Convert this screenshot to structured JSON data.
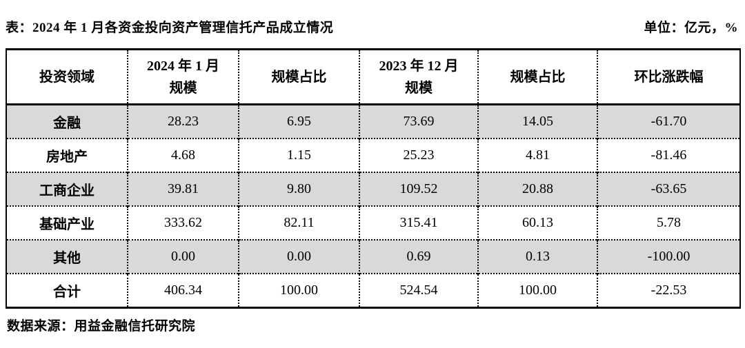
{
  "title": {
    "left": "表：2024 年 1 月各资金投向资产管理信托产品成立情况",
    "right": "单位：亿元，%"
  },
  "table": {
    "headers": [
      "投资领域",
      "2024 年 1 月\n规模",
      "规模占比",
      "2023 年 12 月\n规模",
      "规模占比",
      "环比涨跌幅"
    ],
    "rows": [
      {
        "label": "金融",
        "values": [
          "28.23",
          "6.95",
          "73.69",
          "14.05",
          "-61.70"
        ]
      },
      {
        "label": "房地产",
        "values": [
          "4.68",
          "1.15",
          "25.23",
          "4.81",
          "-81.46"
        ]
      },
      {
        "label": "工商企业",
        "values": [
          "39.81",
          "9.80",
          "109.52",
          "20.88",
          "-63.65"
        ]
      },
      {
        "label": "基础产业",
        "values": [
          "333.62",
          "82.11",
          "315.41",
          "60.13",
          "5.78"
        ]
      },
      {
        "label": "其他",
        "values": [
          "0.00",
          "0.00",
          "0.69",
          "0.13",
          "-100.00"
        ]
      },
      {
        "label": "合计",
        "values": [
          "406.34",
          "100.00",
          "524.54",
          "100.00",
          "-22.53"
        ]
      }
    ],
    "shaded_row_color": "#d9d9d9",
    "border_color": "#000000"
  },
  "footer": {
    "source": "数据来源：用益金融信托研究院"
  },
  "chart_data": {
    "type": "table",
    "title": "2024 年 1 月各资金投向资产管理信托产品成立情况",
    "unit": "亿元，%",
    "columns": [
      "投资领域",
      "2024 年 1 月规模",
      "规模占比",
      "2023 年 12 月规模",
      "规模占比",
      "环比涨跌幅"
    ],
    "rows": [
      [
        "金融",
        28.23,
        6.95,
        73.69,
        14.05,
        -61.7
      ],
      [
        "房地产",
        4.68,
        1.15,
        25.23,
        4.81,
        -81.46
      ],
      [
        "工商企业",
        39.81,
        9.8,
        109.52,
        20.88,
        -63.65
      ],
      [
        "基础产业",
        333.62,
        82.11,
        315.41,
        60.13,
        5.78
      ],
      [
        "其他",
        0.0,
        0.0,
        0.69,
        0.13,
        -100.0
      ],
      [
        "合计",
        406.34,
        100.0,
        524.54,
        100.0,
        -22.53
      ]
    ],
    "source": "用益金融信托研究院"
  }
}
